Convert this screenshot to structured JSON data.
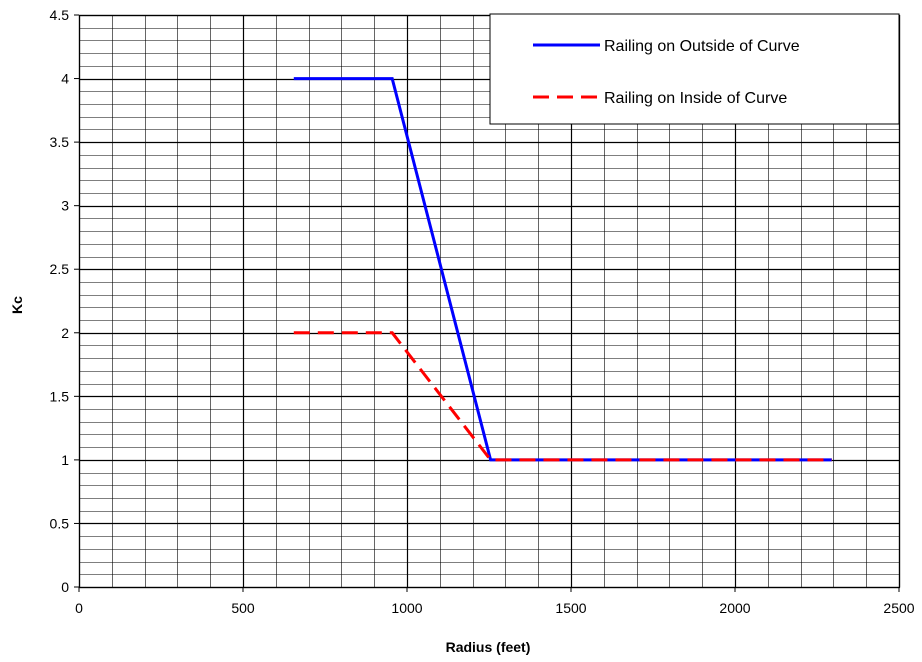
{
  "chart_data": {
    "type": "line",
    "title": "",
    "xlabel": "Radius (feet)",
    "ylabel": "Kc",
    "xlim": [
      0,
      2500
    ],
    "ylim": [
      0,
      4.5
    ],
    "x_ticks": [
      "0",
      "500",
      "1000",
      "1500",
      "2000",
      "2500"
    ],
    "y_ticks": [
      "0",
      "0.5",
      "1",
      "1.5",
      "2",
      "2.5",
      "3",
      "3.5",
      "4",
      "4.5"
    ],
    "major_grid_x_step": 500,
    "minor_grid_x_step": 100,
    "major_grid_y_step": 0.5,
    "minor_grid_y_step": 0.1,
    "grid": true,
    "legend_position": "top-right",
    "series": [
      {
        "name": "Railing on Outside of Curve",
        "color": "#0000ff",
        "style": "solid",
        "x": [
          655,
          955,
          1255,
          2295
        ],
        "y": [
          4,
          4,
          1,
          1
        ]
      },
      {
        "name": "Railing on Inside of Curve",
        "color": "#ff0000",
        "style": "dashed",
        "x": [
          655,
          955,
          1255,
          2295
        ],
        "y": [
          2,
          2,
          1,
          1
        ]
      }
    ]
  }
}
